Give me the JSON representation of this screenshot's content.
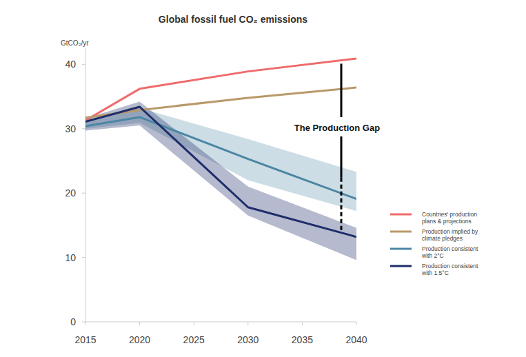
{
  "chart_data": {
    "type": "line",
    "title": "Global fossil fuel CO₂ emissions",
    "y_label": "GtCO₂/yr",
    "x": [
      2015,
      2020,
      2030,
      2040
    ],
    "xlim": [
      2015,
      2040
    ],
    "xticks": [
      2015,
      2020,
      2025,
      2030,
      2035,
      2040
    ],
    "ylim": [
      0,
      42.5
    ],
    "yticks": [
      0,
      10,
      20,
      30,
      40
    ],
    "grid": false,
    "legend": "right",
    "series": [
      {
        "name": "Countries' production plans & projections",
        "color": "#ef6b6b",
        "values": [
          31.3,
          36.2,
          38.9,
          40.9
        ]
      },
      {
        "name": "Production implied by climate pledges",
        "color": "#b9996a",
        "values": [
          31.7,
          32.9,
          34.8,
          36.4
        ]
      },
      {
        "name": "Production consistent with 2°C",
        "color": "#4b86a3",
        "values": [
          30.4,
          31.8,
          25.3,
          19.1
        ],
        "low": [
          30.0,
          30.9,
          22.0,
          17.2
        ],
        "high": [
          30.9,
          33.2,
          28.4,
          23.3
        ]
      },
      {
        "name": "Production consistent with 1.5°C",
        "color": "#1f2d6b",
        "values": [
          31.1,
          33.4,
          17.8,
          13.2
        ],
        "low": [
          29.7,
          30.5,
          16.5,
          9.6
        ],
        "high": [
          31.6,
          34.2,
          21.0,
          14.6
        ]
      }
    ],
    "annotations": [
      {
        "text": "The Production Gap",
        "x": 2038.6,
        "y": 30.2,
        "from": 40.1,
        "to": 14.2,
        "dashed_below": 22.4
      }
    ]
  }
}
